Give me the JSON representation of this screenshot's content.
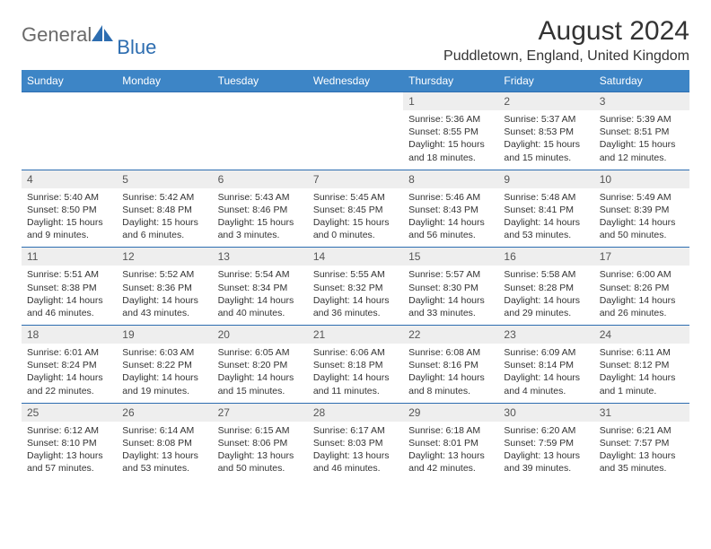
{
  "logo": {
    "text1": "General",
    "text2": "Blue"
  },
  "title": "August 2024",
  "location": "Puddletown, England, United Kingdom",
  "colors": {
    "header_bg": "#3d85c6",
    "header_text": "#ffffff",
    "divider": "#2d6db0",
    "daynum_bg": "#eeeeee",
    "logo_gray": "#6a6a6a",
    "logo_blue": "#2d6db0"
  },
  "day_headers": [
    "Sunday",
    "Monday",
    "Tuesday",
    "Wednesday",
    "Thursday",
    "Friday",
    "Saturday"
  ],
  "weeks": [
    [
      null,
      null,
      null,
      null,
      {
        "n": "1",
        "sr": "5:36 AM",
        "ss": "8:55 PM",
        "dl": "15 hours and 18 minutes."
      },
      {
        "n": "2",
        "sr": "5:37 AM",
        "ss": "8:53 PM",
        "dl": "15 hours and 15 minutes."
      },
      {
        "n": "3",
        "sr": "5:39 AM",
        "ss": "8:51 PM",
        "dl": "15 hours and 12 minutes."
      }
    ],
    [
      {
        "n": "4",
        "sr": "5:40 AM",
        "ss": "8:50 PM",
        "dl": "15 hours and 9 minutes."
      },
      {
        "n": "5",
        "sr": "5:42 AM",
        "ss": "8:48 PM",
        "dl": "15 hours and 6 minutes."
      },
      {
        "n": "6",
        "sr": "5:43 AM",
        "ss": "8:46 PM",
        "dl": "15 hours and 3 minutes."
      },
      {
        "n": "7",
        "sr": "5:45 AM",
        "ss": "8:45 PM",
        "dl": "15 hours and 0 minutes."
      },
      {
        "n": "8",
        "sr": "5:46 AM",
        "ss": "8:43 PM",
        "dl": "14 hours and 56 minutes."
      },
      {
        "n": "9",
        "sr": "5:48 AM",
        "ss": "8:41 PM",
        "dl": "14 hours and 53 minutes."
      },
      {
        "n": "10",
        "sr": "5:49 AM",
        "ss": "8:39 PM",
        "dl": "14 hours and 50 minutes."
      }
    ],
    [
      {
        "n": "11",
        "sr": "5:51 AM",
        "ss": "8:38 PM",
        "dl": "14 hours and 46 minutes."
      },
      {
        "n": "12",
        "sr": "5:52 AM",
        "ss": "8:36 PM",
        "dl": "14 hours and 43 minutes."
      },
      {
        "n": "13",
        "sr": "5:54 AM",
        "ss": "8:34 PM",
        "dl": "14 hours and 40 minutes."
      },
      {
        "n": "14",
        "sr": "5:55 AM",
        "ss": "8:32 PM",
        "dl": "14 hours and 36 minutes."
      },
      {
        "n": "15",
        "sr": "5:57 AM",
        "ss": "8:30 PM",
        "dl": "14 hours and 33 minutes."
      },
      {
        "n": "16",
        "sr": "5:58 AM",
        "ss": "8:28 PM",
        "dl": "14 hours and 29 minutes."
      },
      {
        "n": "17",
        "sr": "6:00 AM",
        "ss": "8:26 PM",
        "dl": "14 hours and 26 minutes."
      }
    ],
    [
      {
        "n": "18",
        "sr": "6:01 AM",
        "ss": "8:24 PM",
        "dl": "14 hours and 22 minutes."
      },
      {
        "n": "19",
        "sr": "6:03 AM",
        "ss": "8:22 PM",
        "dl": "14 hours and 19 minutes."
      },
      {
        "n": "20",
        "sr": "6:05 AM",
        "ss": "8:20 PM",
        "dl": "14 hours and 15 minutes."
      },
      {
        "n": "21",
        "sr": "6:06 AM",
        "ss": "8:18 PM",
        "dl": "14 hours and 11 minutes."
      },
      {
        "n": "22",
        "sr": "6:08 AM",
        "ss": "8:16 PM",
        "dl": "14 hours and 8 minutes."
      },
      {
        "n": "23",
        "sr": "6:09 AM",
        "ss": "8:14 PM",
        "dl": "14 hours and 4 minutes."
      },
      {
        "n": "24",
        "sr": "6:11 AM",
        "ss": "8:12 PM",
        "dl": "14 hours and 1 minute."
      }
    ],
    [
      {
        "n": "25",
        "sr": "6:12 AM",
        "ss": "8:10 PM",
        "dl": "13 hours and 57 minutes."
      },
      {
        "n": "26",
        "sr": "6:14 AM",
        "ss": "8:08 PM",
        "dl": "13 hours and 53 minutes."
      },
      {
        "n": "27",
        "sr": "6:15 AM",
        "ss": "8:06 PM",
        "dl": "13 hours and 50 minutes."
      },
      {
        "n": "28",
        "sr": "6:17 AM",
        "ss": "8:03 PM",
        "dl": "13 hours and 46 minutes."
      },
      {
        "n": "29",
        "sr": "6:18 AM",
        "ss": "8:01 PM",
        "dl": "13 hours and 42 minutes."
      },
      {
        "n": "30",
        "sr": "6:20 AM",
        "ss": "7:59 PM",
        "dl": "13 hours and 39 minutes."
      },
      {
        "n": "31",
        "sr": "6:21 AM",
        "ss": "7:57 PM",
        "dl": "13 hours and 35 minutes."
      }
    ]
  ],
  "labels": {
    "sunrise": "Sunrise: ",
    "sunset": "Sunset: ",
    "daylight": "Daylight: "
  }
}
